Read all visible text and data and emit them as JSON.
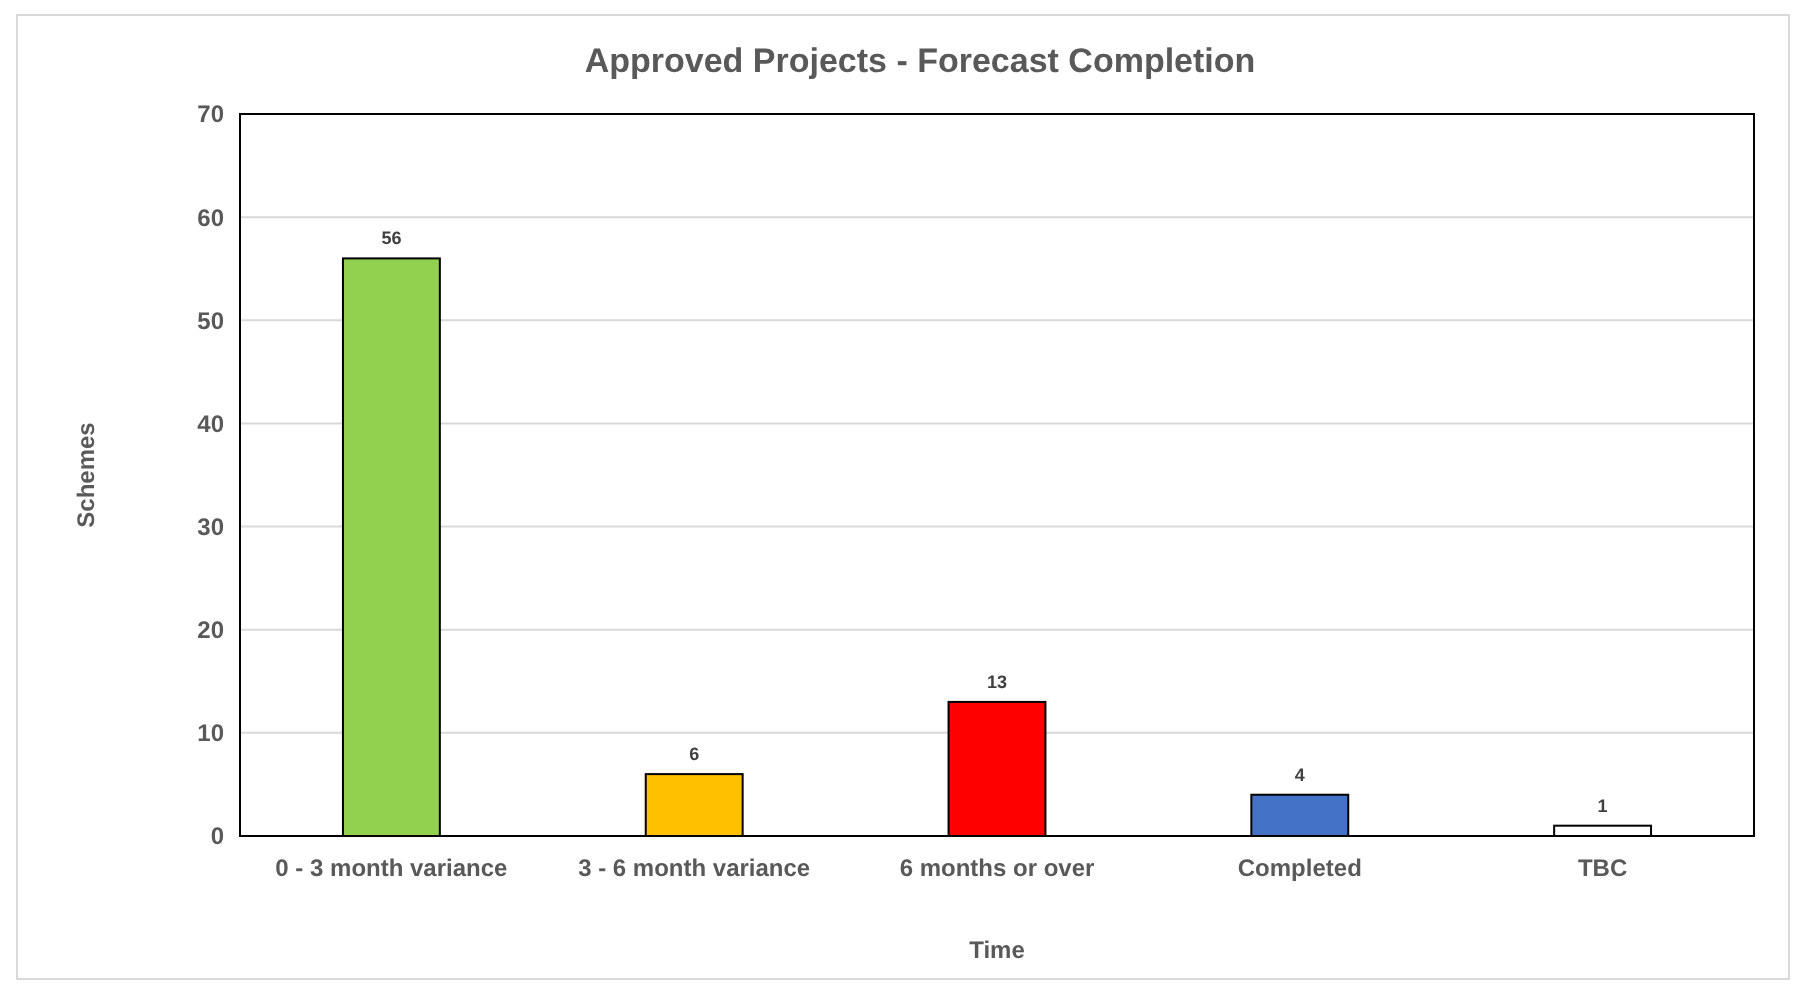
{
  "chart_data": {
    "type": "bar",
    "title": "Approved Projects - Forecast Completion",
    "xlabel": "Time",
    "ylabel": "Schemes",
    "categories": [
      "0 - 3 month variance",
      "3 - 6 month variance",
      "6 months or over",
      "Completed",
      "TBC"
    ],
    "values": [
      56,
      6,
      13,
      4,
      1
    ],
    "colors": [
      "#92d050",
      "#ffc000",
      "#ff0000",
      "#4472c4",
      "#ffffff"
    ],
    "ylim": [
      0,
      70
    ],
    "yticks": [
      0,
      10,
      20,
      30,
      40,
      50,
      60,
      70
    ],
    "grid": "y",
    "data_labels": true
  }
}
